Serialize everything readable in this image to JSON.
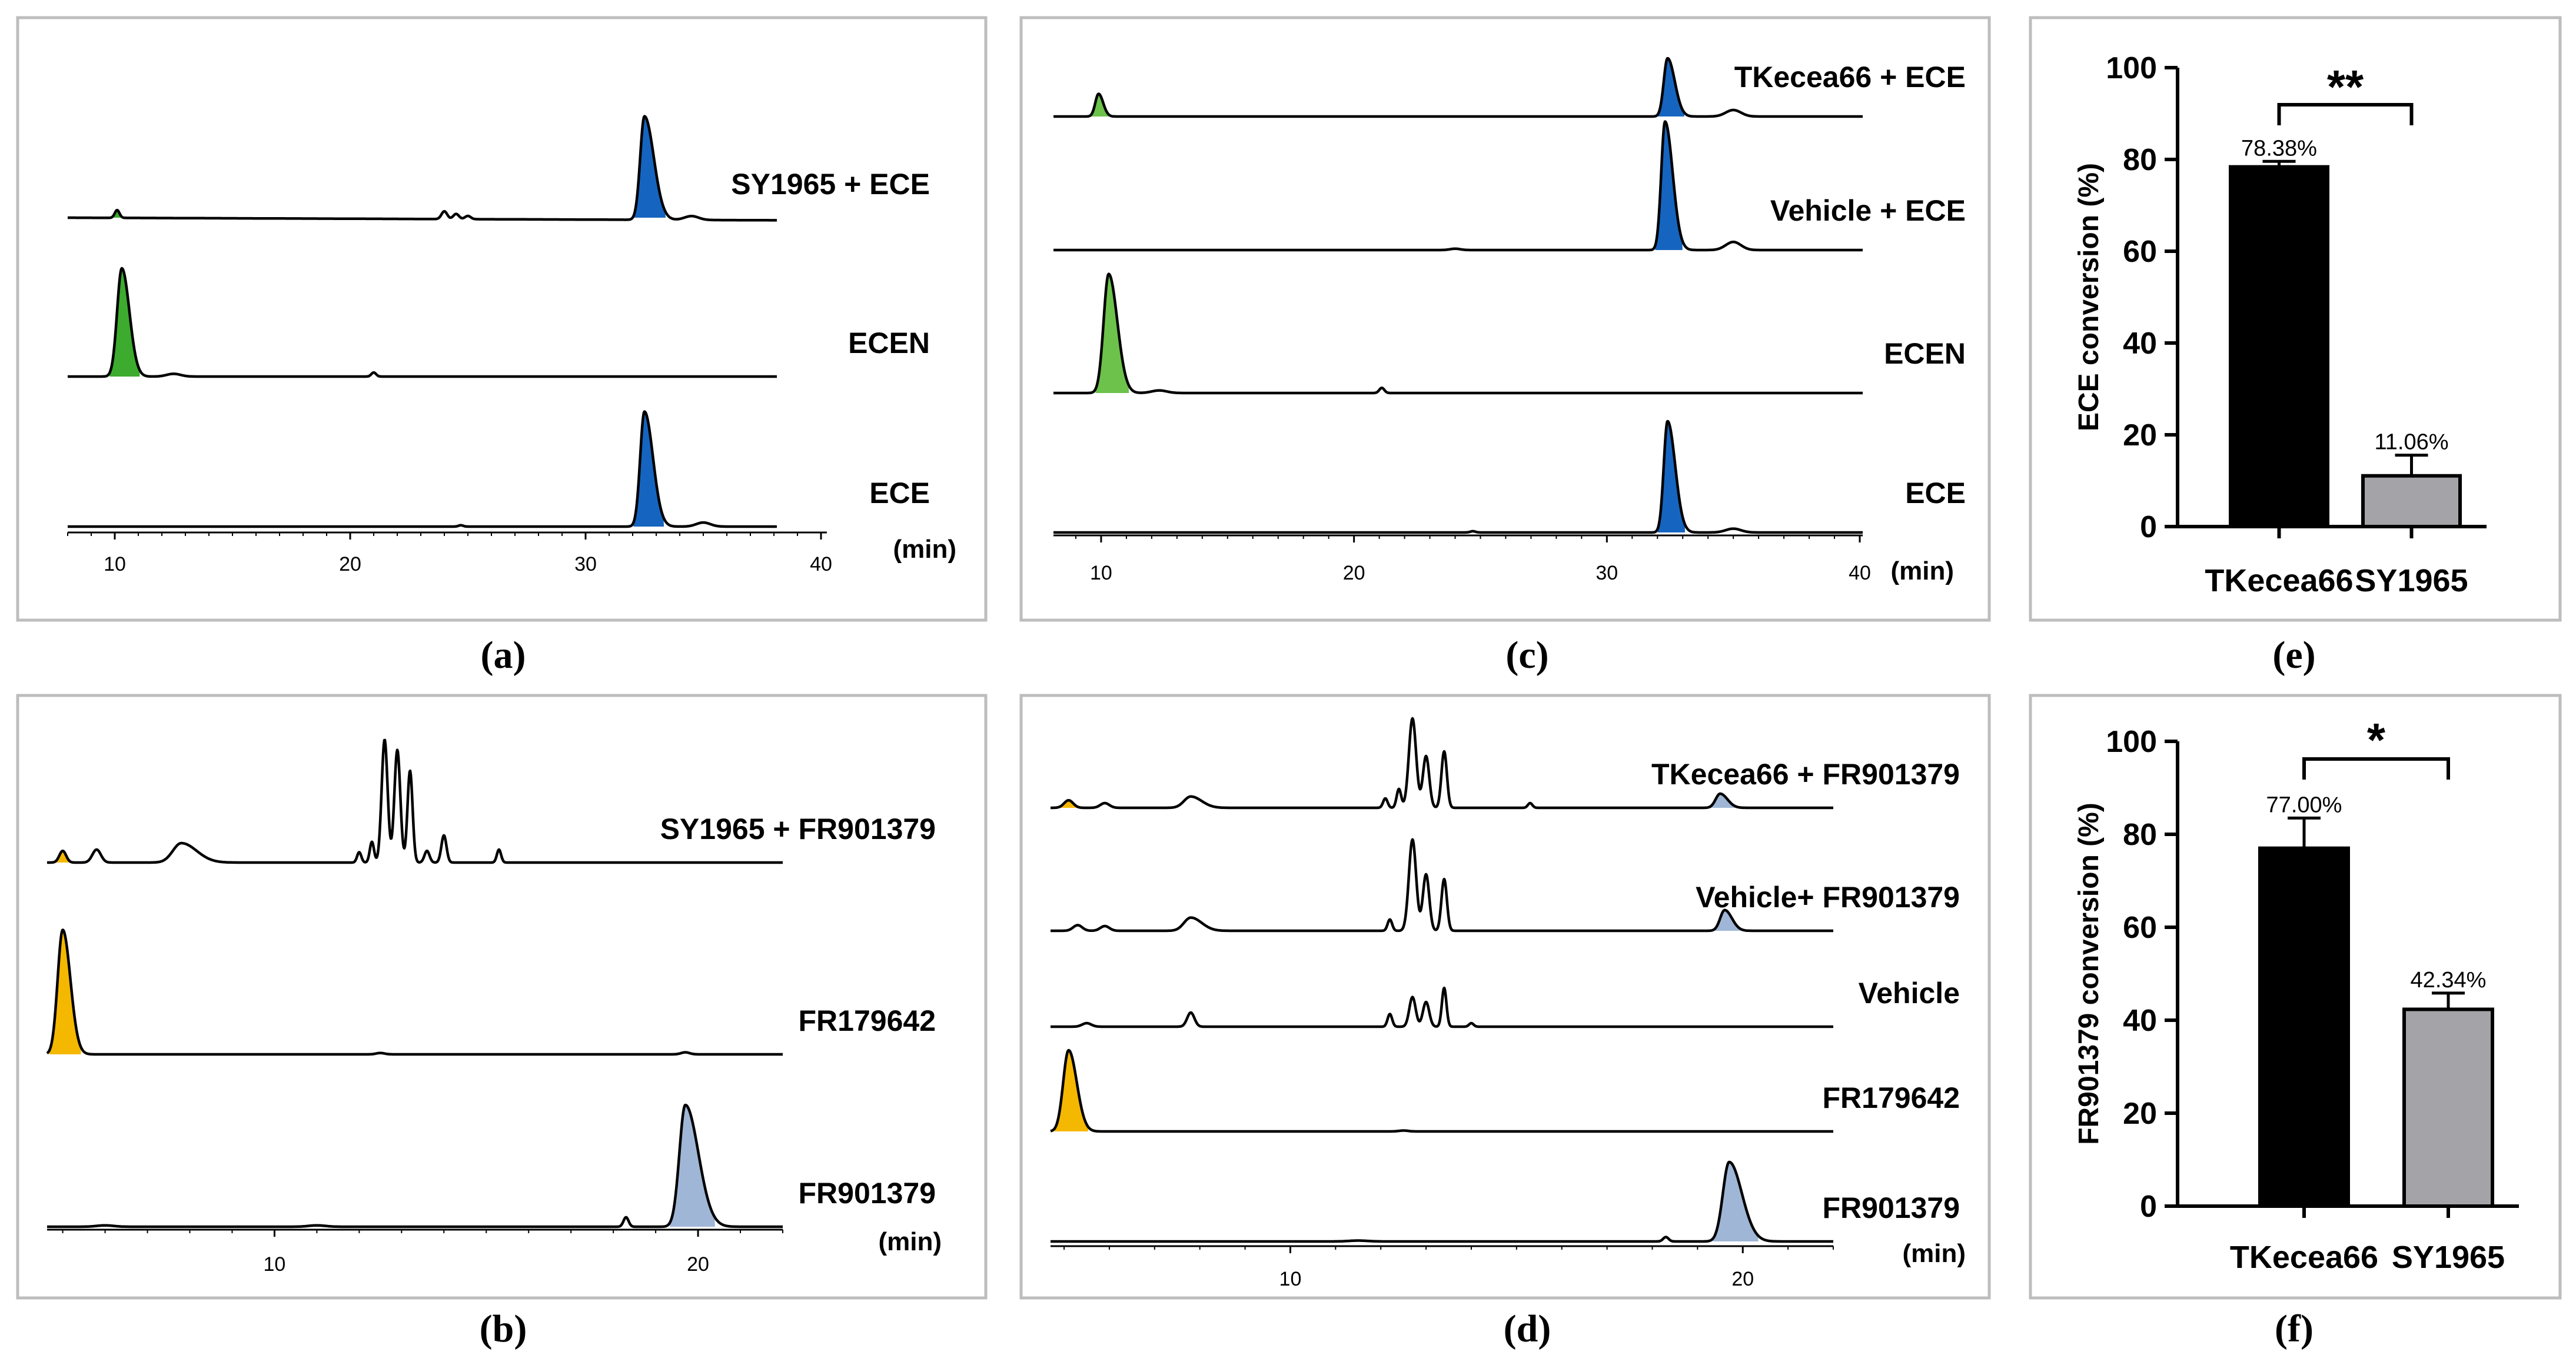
{
  "chart_data": [
    {
      "id": "a",
      "type": "chromatogram",
      "panel_label": "(a)",
      "x_unit": "(min)",
      "xlim": [
        8,
        40
      ],
      "xticks": [
        "10",
        "20",
        "30",
        "40"
      ],
      "traces": [
        {
          "label": "SY1965 + ECE",
          "baseline_tilt": -0.02,
          "peaks": [
            {
              "rt": 10.1,
              "height": 0.06,
              "width": 0.1,
              "fill": "#3cab2e"
            },
            {
              "rt": 24.0,
              "height": 0.06,
              "width": 0.12
            },
            {
              "rt": 24.5,
              "height": 0.04,
              "width": 0.12
            },
            {
              "rt": 25.0,
              "height": 0.025,
              "width": 0.12
            },
            {
              "rt": 32.5,
              "height": 0.8,
              "width": 0.18,
              "tail": 0.6,
              "fill": "#1565c0"
            },
            {
              "rt": 34.5,
              "height": 0.03,
              "width": 0.3
            }
          ]
        },
        {
          "label": "ECEN",
          "baseline_tilt": 0,
          "peaks": [
            {
              "rt": 10.3,
              "height": 0.8,
              "width": 0.2,
              "tail": 0.3,
              "fill": "#3cab2e"
            },
            {
              "rt": 12.5,
              "height": 0.02,
              "width": 0.3
            },
            {
              "rt": 21.0,
              "height": 0.03,
              "width": 0.1
            }
          ]
        },
        {
          "label": "ECE",
          "baseline_tilt": 0,
          "peaks": [
            {
              "rt": 32.5,
              "height": 0.85,
              "width": 0.18,
              "tail": 0.5,
              "fill": "#1565c0"
            },
            {
              "rt": 35.0,
              "height": 0.03,
              "width": 0.3
            },
            {
              "rt": 24.7,
              "height": 0.01,
              "width": 0.1
            }
          ]
        }
      ]
    },
    {
      "id": "b",
      "type": "chromatogram",
      "panel_label": "(b)",
      "x_unit": "(min)",
      "xlim": [
        4.7,
        22
      ],
      "xticks": [
        "10",
        "20"
      ],
      "traces": [
        {
          "label": "SY1965 + FR901379",
          "baseline_tilt": 0,
          "peaks": [
            {
              "rt": 5.0,
              "height": 0.09,
              "width": 0.08,
              "fill": "#f5b800"
            },
            {
              "rt": 5.8,
              "height": 0.1,
              "width": 0.1
            },
            {
              "rt": 7.8,
              "height": 0.15,
              "width": 0.2,
              "tail": 0.4
            },
            {
              "rt": 12.0,
              "height": 0.08,
              "width": 0.05
            },
            {
              "rt": 12.3,
              "height": 0.16,
              "width": 0.05
            },
            {
              "rt": 12.6,
              "height": 0.95,
              "width": 0.07
            },
            {
              "rt": 12.9,
              "height": 0.87,
              "width": 0.07
            },
            {
              "rt": 13.2,
              "height": 0.71,
              "width": 0.06
            },
            {
              "rt": 13.6,
              "height": 0.09,
              "width": 0.06
            },
            {
              "rt": 14.0,
              "height": 0.21,
              "width": 0.06
            },
            {
              "rt": 15.3,
              "height": 0.1,
              "width": 0.05
            }
          ]
        },
        {
          "label": "FR179642",
          "baseline_tilt": 0,
          "peaks": [
            {
              "rt": 5.0,
              "height": 0.92,
              "width": 0.12,
              "tail": 0.25,
              "fill": "#f5b800"
            },
            {
              "rt": 12.5,
              "height": 0.01,
              "width": 0.1
            },
            {
              "rt": 19.7,
              "height": 0.015,
              "width": 0.1
            }
          ]
        },
        {
          "label": "FR901379",
          "baseline_tilt": 0,
          "peaks": [
            {
              "rt": 18.3,
              "height": 0.07,
              "width": 0.06
            },
            {
              "rt": 19.7,
              "height": 0.9,
              "width": 0.14,
              "tail": 0.6,
              "fill": "#9fb6d6"
            },
            {
              "rt": 6.0,
              "height": 0.01,
              "width": 0.2
            },
            {
              "rt": 11.0,
              "height": 0.01,
              "width": 0.2
            }
          ]
        }
      ]
    },
    {
      "id": "c",
      "type": "chromatogram",
      "panel_label": "(c)",
      "x_unit": "(min)",
      "xlim": [
        8,
        40
      ],
      "xticks": [
        "10",
        "20",
        "30",
        "40"
      ],
      "traces": [
        {
          "label": "TKecea66 + ECE",
          "baseline_tilt": 0,
          "peaks": [
            {
              "rt": 9.9,
              "height": 0.35,
              "width": 0.13,
              "tail": 0.2,
              "fill": "#6cc24a"
            },
            {
              "rt": 32.4,
              "height": 0.9,
              "width": 0.15,
              "tail": 0.45,
              "fill": "#1565c0"
            },
            {
              "rt": 35.0,
              "height": 0.1,
              "width": 0.3
            }
          ]
        },
        {
          "label": "Vehicle + ECE",
          "baseline_tilt": 0,
          "peaks": [
            {
              "rt": 32.3,
              "height": 0.95,
              "width": 0.15,
              "tail": 0.5,
              "fill": "#1565c0"
            },
            {
              "rt": 35.0,
              "height": 0.06,
              "width": 0.3
            },
            {
              "rt": 24.0,
              "height": 0.01,
              "width": 0.2
            }
          ]
        },
        {
          "label": "ECEN",
          "baseline_tilt": 0,
          "peaks": [
            {
              "rt": 10.3,
              "height": 0.92,
              "width": 0.2,
              "tail": 0.35,
              "fill": "#6cc24a"
            },
            {
              "rt": 12.3,
              "height": 0.02,
              "width": 0.3
            },
            {
              "rt": 21.1,
              "height": 0.04,
              "width": 0.1
            }
          ]
        },
        {
          "label": "ECE",
          "baseline_tilt": 0,
          "peaks": [
            {
              "rt": 32.4,
              "height": 0.88,
              "width": 0.15,
              "tail": 0.5,
              "fill": "#1565c0"
            },
            {
              "rt": 35.0,
              "height": 0.03,
              "width": 0.3
            },
            {
              "rt": 24.7,
              "height": 0.01,
              "width": 0.1
            }
          ]
        }
      ]
    },
    {
      "id": "d",
      "type": "chromatogram",
      "panel_label": "(d)",
      "x_unit": "(min)",
      "xlim": [
        4.7,
        22
      ],
      "xticks": [
        "10",
        "20"
      ],
      "traces": [
        {
          "label": "TKecea66 + FR901379",
          "baseline_tilt": 0,
          "peaks": [
            {
              "rt": 5.1,
              "height": 0.08,
              "width": 0.1,
              "fill": "#f5b800"
            },
            {
              "rt": 5.9,
              "height": 0.05,
              "width": 0.1
            },
            {
              "rt": 7.8,
              "height": 0.12,
              "width": 0.15,
              "tail": 0.3
            },
            {
              "rt": 12.1,
              "height": 0.1,
              "width": 0.05
            },
            {
              "rt": 12.4,
              "height": 0.2,
              "width": 0.05
            },
            {
              "rt": 12.7,
              "height": 0.95,
              "width": 0.08
            },
            {
              "rt": 13.0,
              "height": 0.55,
              "width": 0.07
            },
            {
              "rt": 13.4,
              "height": 0.6,
              "width": 0.06
            },
            {
              "rt": 15.3,
              "height": 0.05,
              "width": 0.05
            },
            {
              "rt": 19.5,
              "height": 0.15,
              "width": 0.1,
              "tail": 0.3,
              "fill": "#9fb6d6"
            }
          ]
        },
        {
          "label": "Vehicle+ FR901379",
          "baseline_tilt": 0,
          "peaks": [
            {
              "rt": 5.3,
              "height": 0.06,
              "width": 0.1
            },
            {
              "rt": 5.9,
              "height": 0.05,
              "width": 0.1
            },
            {
              "rt": 7.8,
              "height": 0.14,
              "width": 0.15,
              "tail": 0.3
            },
            {
              "rt": 12.2,
              "height": 0.12,
              "width": 0.05
            },
            {
              "rt": 12.7,
              "height": 0.97,
              "width": 0.08
            },
            {
              "rt": 13.0,
              "height": 0.6,
              "width": 0.07
            },
            {
              "rt": 13.4,
              "height": 0.55,
              "width": 0.06
            },
            {
              "rt": 19.6,
              "height": 0.22,
              "width": 0.1,
              "tail": 0.3,
              "fill": "#9fb6d6"
            }
          ]
        },
        {
          "label": "Vehicle",
          "baseline_tilt": 0,
          "peaks": [
            {
              "rt": 5.5,
              "height": 0.05,
              "width": 0.1
            },
            {
              "rt": 7.8,
              "height": 0.2,
              "width": 0.08
            },
            {
              "rt": 12.2,
              "height": 0.18,
              "width": 0.05
            },
            {
              "rt": 12.7,
              "height": 0.42,
              "width": 0.07
            },
            {
              "rt": 13.0,
              "height": 0.35,
              "width": 0.07
            },
            {
              "rt": 13.4,
              "height": 0.55,
              "width": 0.05
            },
            {
              "rt": 14.0,
              "height": 0.05,
              "width": 0.05
            }
          ]
        },
        {
          "label": "FR179642",
          "baseline_tilt": 0,
          "peaks": [
            {
              "rt": 5.1,
              "height": 0.92,
              "width": 0.12,
              "tail": 0.25,
              "fill": "#f5b800"
            },
            {
              "rt": 12.5,
              "height": 0.01,
              "width": 0.1
            }
          ]
        },
        {
          "label": "FR901379",
          "baseline_tilt": 0,
          "peaks": [
            {
              "rt": 18.3,
              "height": 0.05,
              "width": 0.06
            },
            {
              "rt": 19.7,
              "height": 0.9,
              "width": 0.14,
              "tail": 0.5,
              "fill": "#9fb6d6"
            },
            {
              "rt": 11.5,
              "height": 0.01,
              "width": 0.2
            }
          ]
        }
      ]
    },
    {
      "id": "e",
      "type": "bar",
      "panel_label": "(e)",
      "ylabel": "ECE conversion (%)",
      "ylim": [
        0,
        100
      ],
      "yticks": [
        "0",
        "20",
        "40",
        "60",
        "80",
        "100"
      ],
      "categories": [
        "TKecea66",
        "SY1965"
      ],
      "values": [
        78.38,
        11.06
      ],
      "errors": [
        1.2,
        4.5
      ],
      "value_labels": [
        "78.38%",
        "11.06%"
      ],
      "colors": [
        "#000000",
        "#a3a3a8"
      ],
      "significance": "**"
    },
    {
      "id": "f",
      "type": "bar",
      "panel_label": "(f)",
      "ylabel": "FR901379 conversion (%)",
      "ylim": [
        0,
        100
      ],
      "yticks": [
        "0",
        "20",
        "40",
        "60",
        "80",
        "100"
      ],
      "categories": [
        "TKecea66",
        "SY1965"
      ],
      "values": [
        77.0,
        42.34
      ],
      "errors": [
        6.5,
        3.5
      ],
      "value_labels": [
        "77.00%",
        "42.34%"
      ],
      "colors": [
        "#000000",
        "#a3a3a8"
      ],
      "significance": "*"
    }
  ]
}
